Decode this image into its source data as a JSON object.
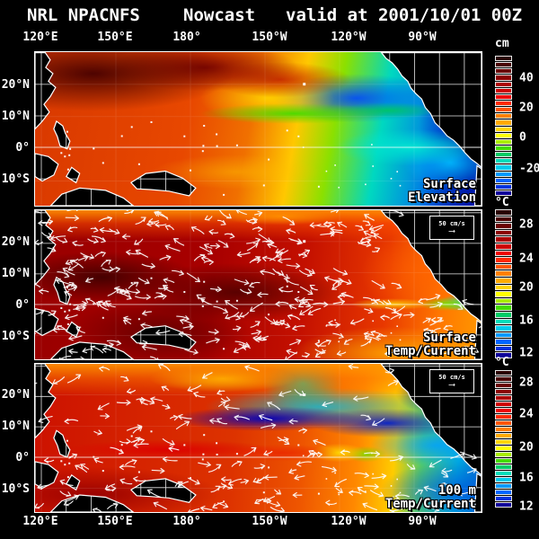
{
  "header": {
    "org": "NRL NPACNFS",
    "product": "Nowcast",
    "valid": "valid at 2001/10/01 00Z"
  },
  "axes": {
    "lon_labels": [
      "120°E",
      "150°E",
      "180°",
      "150°W",
      "120°W",
      "90°W"
    ],
    "lat_labels": [
      "20°N",
      "10°N",
      "0°",
      "10°S"
    ]
  },
  "colorbars": [
    {
      "unit": "cm",
      "ticks": [
        "40",
        "20",
        "0",
        "-20"
      ]
    },
    {
      "unit": "°C",
      "ticks": [
        "28",
        "24",
        "20",
        "16",
        "12"
      ]
    },
    {
      "unit": "°C",
      "ticks": [
        "28",
        "24",
        "20",
        "16",
        "12"
      ]
    }
  ],
  "palette": [
    "#2a0000",
    "#4a0000",
    "#6b0000",
    "#8c0000",
    "#ad0000",
    "#ce0000",
    "#ef0000",
    "#ff2a00",
    "#ff5500",
    "#ff8000",
    "#ffaa00",
    "#ffd500",
    "#ffff00",
    "#aaee00",
    "#44dd00",
    "#00cc66",
    "#00ddbb",
    "#00ccee",
    "#0099ff",
    "#0066ff",
    "#0033dd",
    "#0d0099"
  ],
  "panels": [
    {
      "label_line1": "Surface",
      "label_line2": "Elevation"
    },
    {
      "label_line1": "Surface",
      "label_line2": "Temp/Current",
      "vector_key": "50 cm/s"
    },
    {
      "label_line1": "100 m",
      "label_line2": "Temp/Current",
      "vector_key": "50 cm/s"
    }
  ]
}
